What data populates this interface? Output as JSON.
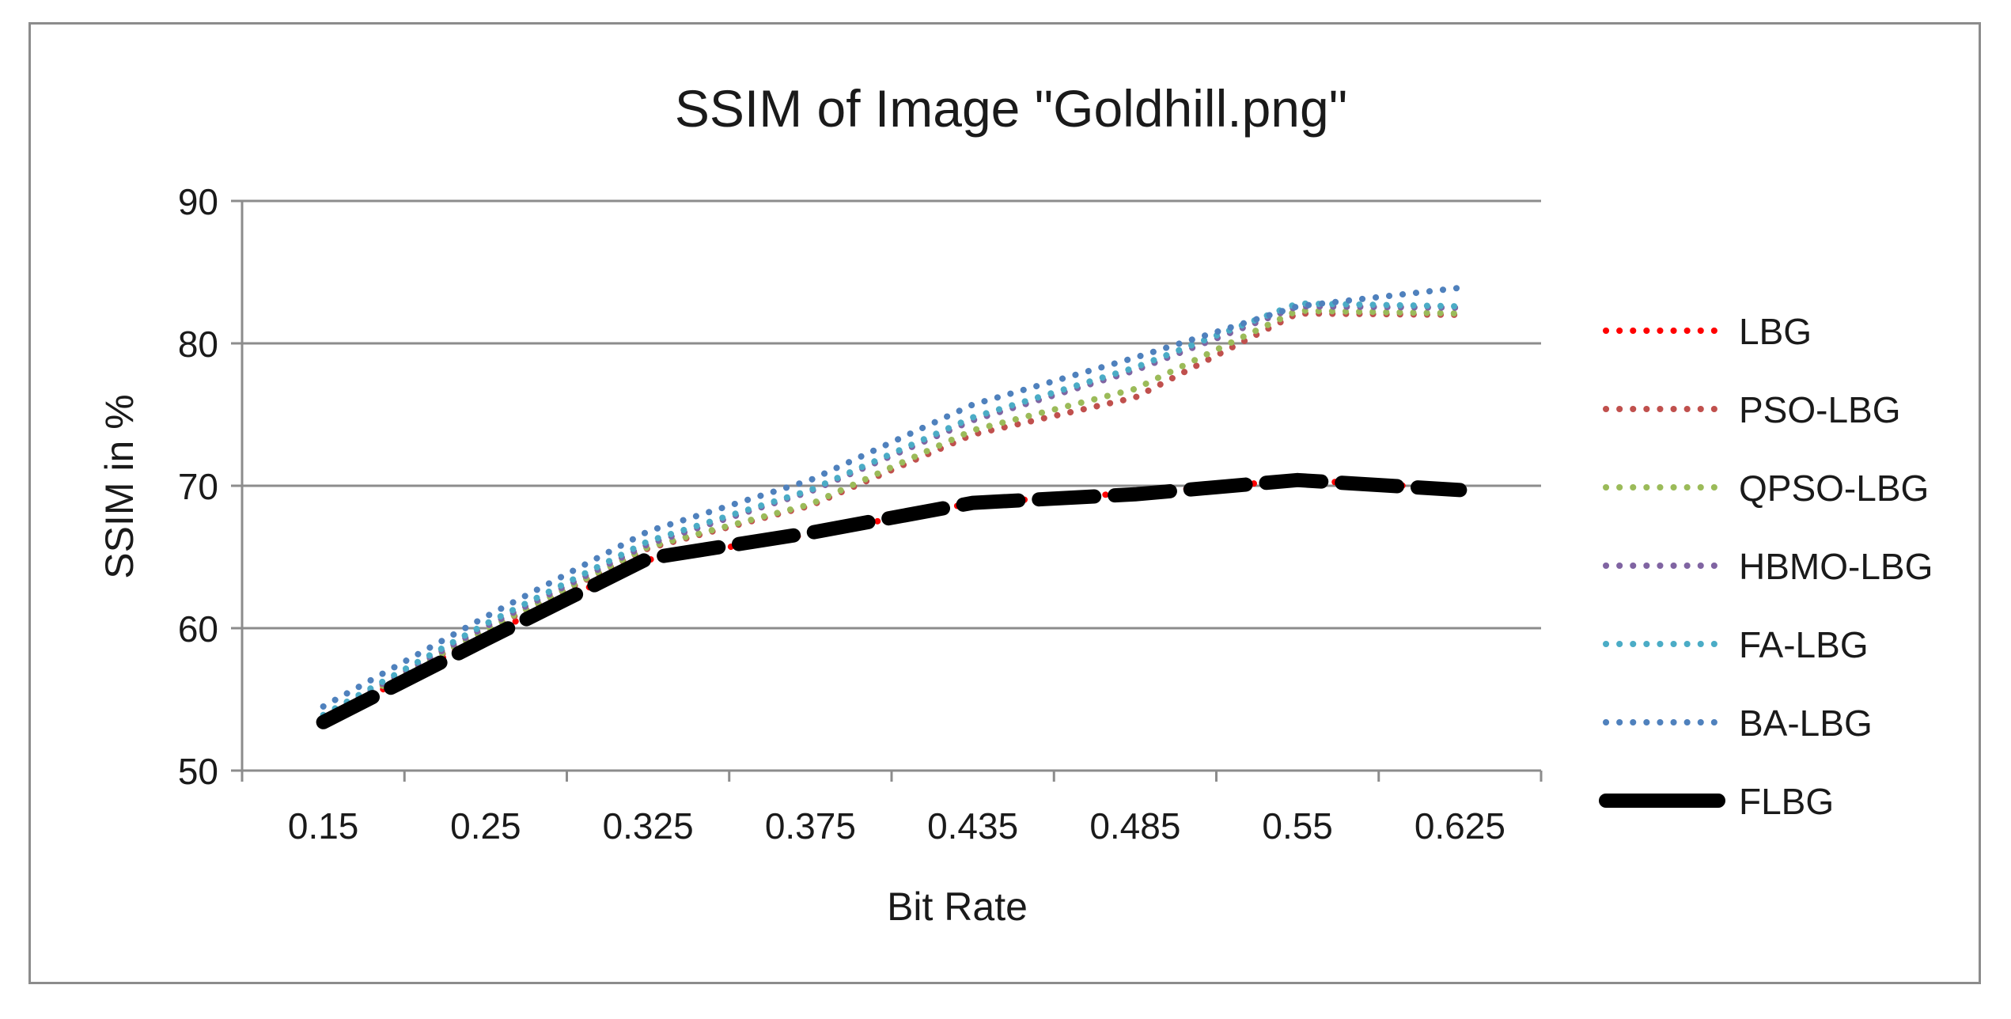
{
  "chart_data": {
    "type": "line",
    "title": "SSIM of Image \"Goldhill.png\"",
    "xlabel": "Bit Rate",
    "ylabel": "SSIM in %",
    "categories": [
      "0.15",
      "0.25",
      "0.325",
      "0.375",
      "0.435",
      "0.485",
      "0.55",
      "0.625"
    ],
    "ylim": [
      50,
      90
    ],
    "yticks": [
      50,
      60,
      70,
      80,
      90
    ],
    "grid": true,
    "legend_position": "right",
    "series": [
      {
        "name": "LBG",
        "color": "#ff0000",
        "style": "dotted",
        "values": [
          53.5,
          59.5,
          64.8,
          66.6,
          68.8,
          69.5,
          70.4,
          69.8
        ]
      },
      {
        "name": "PSO-LBG",
        "color": "#c0504d",
        "style": "dotted",
        "values": [
          53.7,
          59.8,
          65.6,
          68.6,
          73.6,
          76.2,
          82.1,
          82.0
        ]
      },
      {
        "name": "QPSO-LBG",
        "color": "#9bbb59",
        "style": "dotted",
        "values": [
          53.7,
          59.9,
          65.7,
          68.7,
          73.9,
          76.8,
          82.3,
          82.1
        ]
      },
      {
        "name": "HBMO-LBG",
        "color": "#8064a2",
        "style": "dotted",
        "values": [
          53.8,
          60.1,
          65.9,
          69.6,
          74.6,
          78.1,
          82.6,
          82.5
        ]
      },
      {
        "name": "FA-LBG",
        "color": "#4bacc6",
        "style": "dotted",
        "values": [
          53.9,
          60.3,
          66.1,
          69.7,
          74.8,
          78.3,
          82.8,
          82.6
        ]
      },
      {
        "name": "BA-LBG",
        "color": "#4f81bd",
        "style": "dotted",
        "values": [
          54.5,
          60.8,
          66.8,
          70.4,
          75.7,
          79.0,
          82.6,
          83.9
        ]
      },
      {
        "name": "FLBG",
        "color": "#000000",
        "style": "dashed-thick",
        "values": [
          53.4,
          59.2,
          64.9,
          66.7,
          68.8,
          69.4,
          70.4,
          69.7
        ]
      }
    ]
  }
}
